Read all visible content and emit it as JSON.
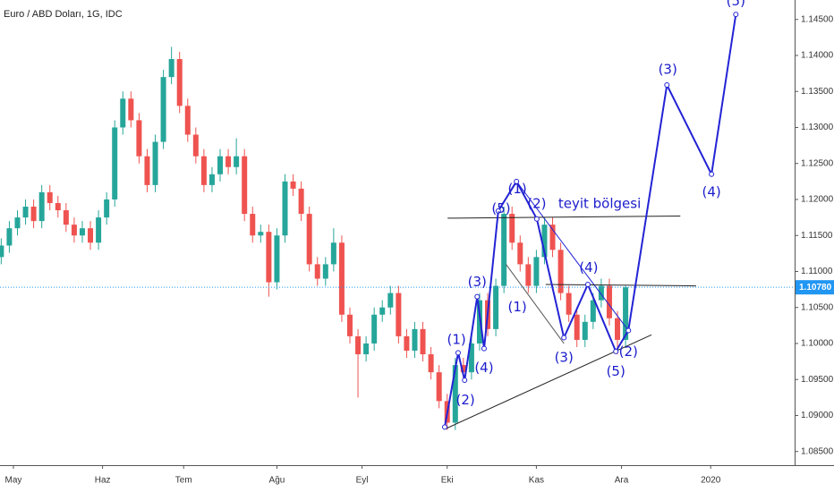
{
  "chart_data": {
    "type": "candlestick",
    "title": "Euro / ABD Doları, 1G, IDC",
    "x": [
      0,
      2,
      4,
      6,
      8,
      10,
      12,
      14,
      16,
      18,
      20,
      22,
      24,
      26,
      28,
      30,
      32,
      34,
      36,
      38,
      40,
      42,
      44,
      46,
      48,
      50,
      52,
      54,
      56,
      58,
      60,
      62,
      64,
      66,
      68,
      70,
      72,
      74,
      76,
      78,
      80,
      82,
      84,
      86,
      88,
      90,
      92,
      94,
      96,
      98,
      100,
      102,
      104,
      106,
      108,
      110,
      112,
      114,
      116,
      118,
      120,
      122,
      124,
      126,
      128,
      130,
      132,
      134,
      136,
      138,
      140,
      142,
      144,
      146,
      148,
      150,
      152,
      154
    ],
    "open": [
      1.112,
      1.1136,
      1.116,
      1.1175,
      1.119,
      1.117,
      1.121,
      1.1195,
      1.1185,
      1.1165,
      1.115,
      1.116,
      1.114,
      1.1175,
      1.12,
      1.13,
      1.134,
      1.131,
      1.126,
      1.122,
      1.128,
      1.137,
      1.1395,
      1.133,
      1.129,
      1.126,
      1.122,
      1.1235,
      1.126,
      1.1245,
      1.126,
      1.118,
      1.115,
      1.1155,
      1.1085,
      1.115,
      1.1225,
      1.1215,
      1.118,
      1.111,
      1.109,
      1.111,
      1.114,
      1.104,
      1.101,
      1.0985,
      1.1,
      1.104,
      1.105,
      1.107,
      1.101,
      1.099,
      1.102,
      1.0985,
      1.096,
      1.092,
      1.089,
      1.097,
      1.096,
      1.1,
      1.106,
      1.102,
      1.108,
      1.118,
      1.114,
      1.111,
      1.108,
      1.112,
      1.1165,
      1.113,
      1.107,
      1.104,
      1.1005,
      1.103,
      1.106,
      1.108,
      1.1035,
      1.1005
    ],
    "high": [
      1.1146,
      1.117,
      1.1185,
      1.12,
      1.12,
      1.122,
      1.122,
      1.1205,
      1.1195,
      1.1175,
      1.117,
      1.117,
      1.1185,
      1.121,
      1.131,
      1.135,
      1.135,
      1.132,
      1.127,
      1.129,
      1.138,
      1.1412,
      1.1405,
      1.134,
      1.13,
      1.127,
      1.1245,
      1.127,
      1.127,
      1.1285,
      1.127,
      1.119,
      1.1165,
      1.1165,
      1.116,
      1.1235,
      1.1235,
      1.1225,
      1.119,
      1.112,
      1.112,
      1.116,
      1.115,
      1.105,
      1.102,
      1.101,
      1.105,
      1.106,
      1.108,
      1.108,
      1.102,
      1.103,
      1.103,
      1.0995,
      1.097,
      1.093,
      1.098,
      1.098,
      1.101,
      1.107,
      1.107,
      1.109,
      1.119,
      1.119,
      1.115,
      1.112,
      1.113,
      1.1175,
      1.1175,
      1.114,
      1.108,
      1.105,
      1.104,
      1.107,
      1.109,
      1.109,
      1.1045,
      1.108
    ],
    "low": [
      1.111,
      1.1126,
      1.115,
      1.1165,
      1.116,
      1.116,
      1.1185,
      1.1175,
      1.1155,
      1.114,
      1.114,
      1.113,
      1.113,
      1.1165,
      1.119,
      1.129,
      1.13,
      1.125,
      1.121,
      1.121,
      1.127,
      1.136,
      1.132,
      1.128,
      1.125,
      1.121,
      1.121,
      1.1225,
      1.1235,
      1.1235,
      1.117,
      1.114,
      1.114,
      1.1065,
      1.1075,
      1.114,
      1.1205,
      1.117,
      1.11,
      1.108,
      1.108,
      1.11,
      1.103,
      1.1,
      1.0925,
      1.0975,
      1.099,
      1.103,
      1.104,
      1.1,
      1.098,
      1.098,
      1.0975,
      1.095,
      1.091,
      1.088,
      1.088,
      1.095,
      1.095,
      1.099,
      1.101,
      1.101,
      1.107,
      1.113,
      1.11,
      1.107,
      1.107,
      1.111,
      1.112,
      1.106,
      1.103,
      1.0995,
      1.0995,
      1.102,
      1.105,
      1.1025,
      1.0985,
      1.0995
    ],
    "close": [
      1.1136,
      1.116,
      1.1175,
      1.119,
      1.117,
      1.121,
      1.1195,
      1.1185,
      1.1165,
      1.115,
      1.116,
      1.114,
      1.1175,
      1.12,
      1.13,
      1.134,
      1.131,
      1.126,
      1.122,
      1.128,
      1.137,
      1.1395,
      1.133,
      1.129,
      1.126,
      1.122,
      1.1235,
      1.126,
      1.1245,
      1.126,
      1.118,
      1.115,
      1.1155,
      1.1085,
      1.115,
      1.1225,
      1.1215,
      1.118,
      1.111,
      1.109,
      1.111,
      1.114,
      1.104,
      1.101,
      1.0985,
      1.1,
      1.104,
      1.105,
      1.107,
      1.101,
      1.099,
      1.102,
      1.0985,
      1.096,
      1.092,
      1.089,
      1.097,
      1.096,
      1.1,
      1.106,
      1.102,
      1.108,
      1.118,
      1.114,
      1.111,
      1.108,
      1.112,
      1.1165,
      1.113,
      1.107,
      1.104,
      1.1005,
      1.103,
      1.106,
      1.108,
      1.1035,
      1.1005,
      1.1078
    ],
    "up_color": "#26a69a",
    "down_color": "#ef5350",
    "xlim": [
      -0.3,
      195.7
    ],
    "ylim": [
      1.0831,
      1.1477
    ],
    "xticks": [
      {
        "value": 3,
        "label": "May"
      },
      {
        "value": 25,
        "label": "Haz"
      },
      {
        "value": 45,
        "label": "Tem"
      },
      {
        "value": 68,
        "label": "Ağu"
      },
      {
        "value": 89,
        "label": "Eyl"
      },
      {
        "value": 110,
        "label": "Eki"
      },
      {
        "value": 132,
        "label": "Kas"
      },
      {
        "value": 153,
        "label": "Ara"
      },
      {
        "value": 175,
        "label": "2020"
      }
    ],
    "yticks": [
      {
        "value": 1.085,
        "label": "1.08500"
      },
      {
        "value": 1.09,
        "label": "1.09000"
      },
      {
        "value": 1.095,
        "label": "1.09500"
      },
      {
        "value": 1.1,
        "label": "1.10000"
      },
      {
        "value": 1.105,
        "label": "1.10500"
      },
      {
        "value": 1.11,
        "label": "1.11000"
      },
      {
        "value": 1.115,
        "label": "1.11500"
      },
      {
        "value": 1.12,
        "label": "1.12000"
      },
      {
        "value": 1.125,
        "label": "1.12500"
      },
      {
        "value": 1.13,
        "label": "1.13000"
      },
      {
        "value": 1.135,
        "label": "1.13500"
      },
      {
        "value": 1.14,
        "label": "1.14000"
      },
      {
        "value": 1.145,
        "label": "1.14500"
      }
    ],
    "last_price": 1.1078,
    "last_price_label": "1.10780",
    "last_price_color": "#2196f3",
    "wave": {
      "color": "#2323d5",
      "x": [
        109.4,
        112.7,
        114.3,
        117.4,
        119.1,
        122.6,
        127.1,
        132.1,
        138.8,
        144.7,
        151.6,
        154.7,
        164.2,
        175.2,
        181.2
      ],
      "values": [
        1.0884,
        1.0987,
        1.0949,
        1.1065,
        1.0993,
        1.1184,
        1.1225,
        1.1173,
        1.1008,
        1.1082,
        1.0989,
        1.1018,
        1.1359,
        1.1235,
        1.1457
      ]
    },
    "lines": [
      {
        "color": "#2323d5",
        "x": [
          127.1,
          154.7
        ],
        "values": [
          1.1225,
          1.1018
        ]
      },
      {
        "color": "#222222",
        "x": [
          109.4,
          160.4
        ],
        "values": [
          1.0881,
          1.1012
        ]
      },
      {
        "color": "#222222",
        "x": [
          110.1,
          167.5
        ],
        "values": [
          1.1174,
          1.1177
        ]
      },
      {
        "color": "#222222",
        "x": [
          134.3,
          171.4
        ],
        "values": [
          1.1082,
          1.108
        ]
      },
      {
        "color": "#555555",
        "x": [
          124.5,
          138.8
        ],
        "values": [
          1.111,
          1.1
        ]
      }
    ],
    "label_color": "#1c1ccc",
    "labels": [
      {
        "text": "(1)",
        "x": 112.3,
        "y": 1.1005
      },
      {
        "text": "(2)",
        "x": 114.5,
        "y": 1.0921
      },
      {
        "text": "(3)",
        "x": 117.4,
        "y": 1.1085
      },
      {
        "text": "(4)",
        "x": 119.1,
        "y": 1.0966
      },
      {
        "text": "(5)",
        "x": 123.3,
        "y": 1.1187
      },
      {
        "text": "(1)",
        "x": 127.3,
        "y": 1.1214
      },
      {
        "text": "(2)",
        "x": 132.1,
        "y": 1.1194
      },
      {
        "text": "(1)",
        "x": 127.3,
        "y": 1.105
      },
      {
        "text": "(3)",
        "x": 138.8,
        "y": 1.098
      },
      {
        "text": "(4)",
        "x": 144.9,
        "y": 1.1105
      },
      {
        "text": "(5)",
        "x": 151.6,
        "y": 1.0961
      },
      {
        "text": "(2)",
        "x": 154.7,
        "y": 1.0988
      },
      {
        "text": "(3)",
        "x": 164.4,
        "y": 1.138
      },
      {
        "text": "(4)",
        "x": 175.2,
        "y": 1.121
      },
      {
        "text": "(5)",
        "x": 181.2,
        "y": 1.1475
      },
      {
        "text": "teyit bölgesi",
        "x": 147.6,
        "y": 1.1194
      }
    ]
  }
}
